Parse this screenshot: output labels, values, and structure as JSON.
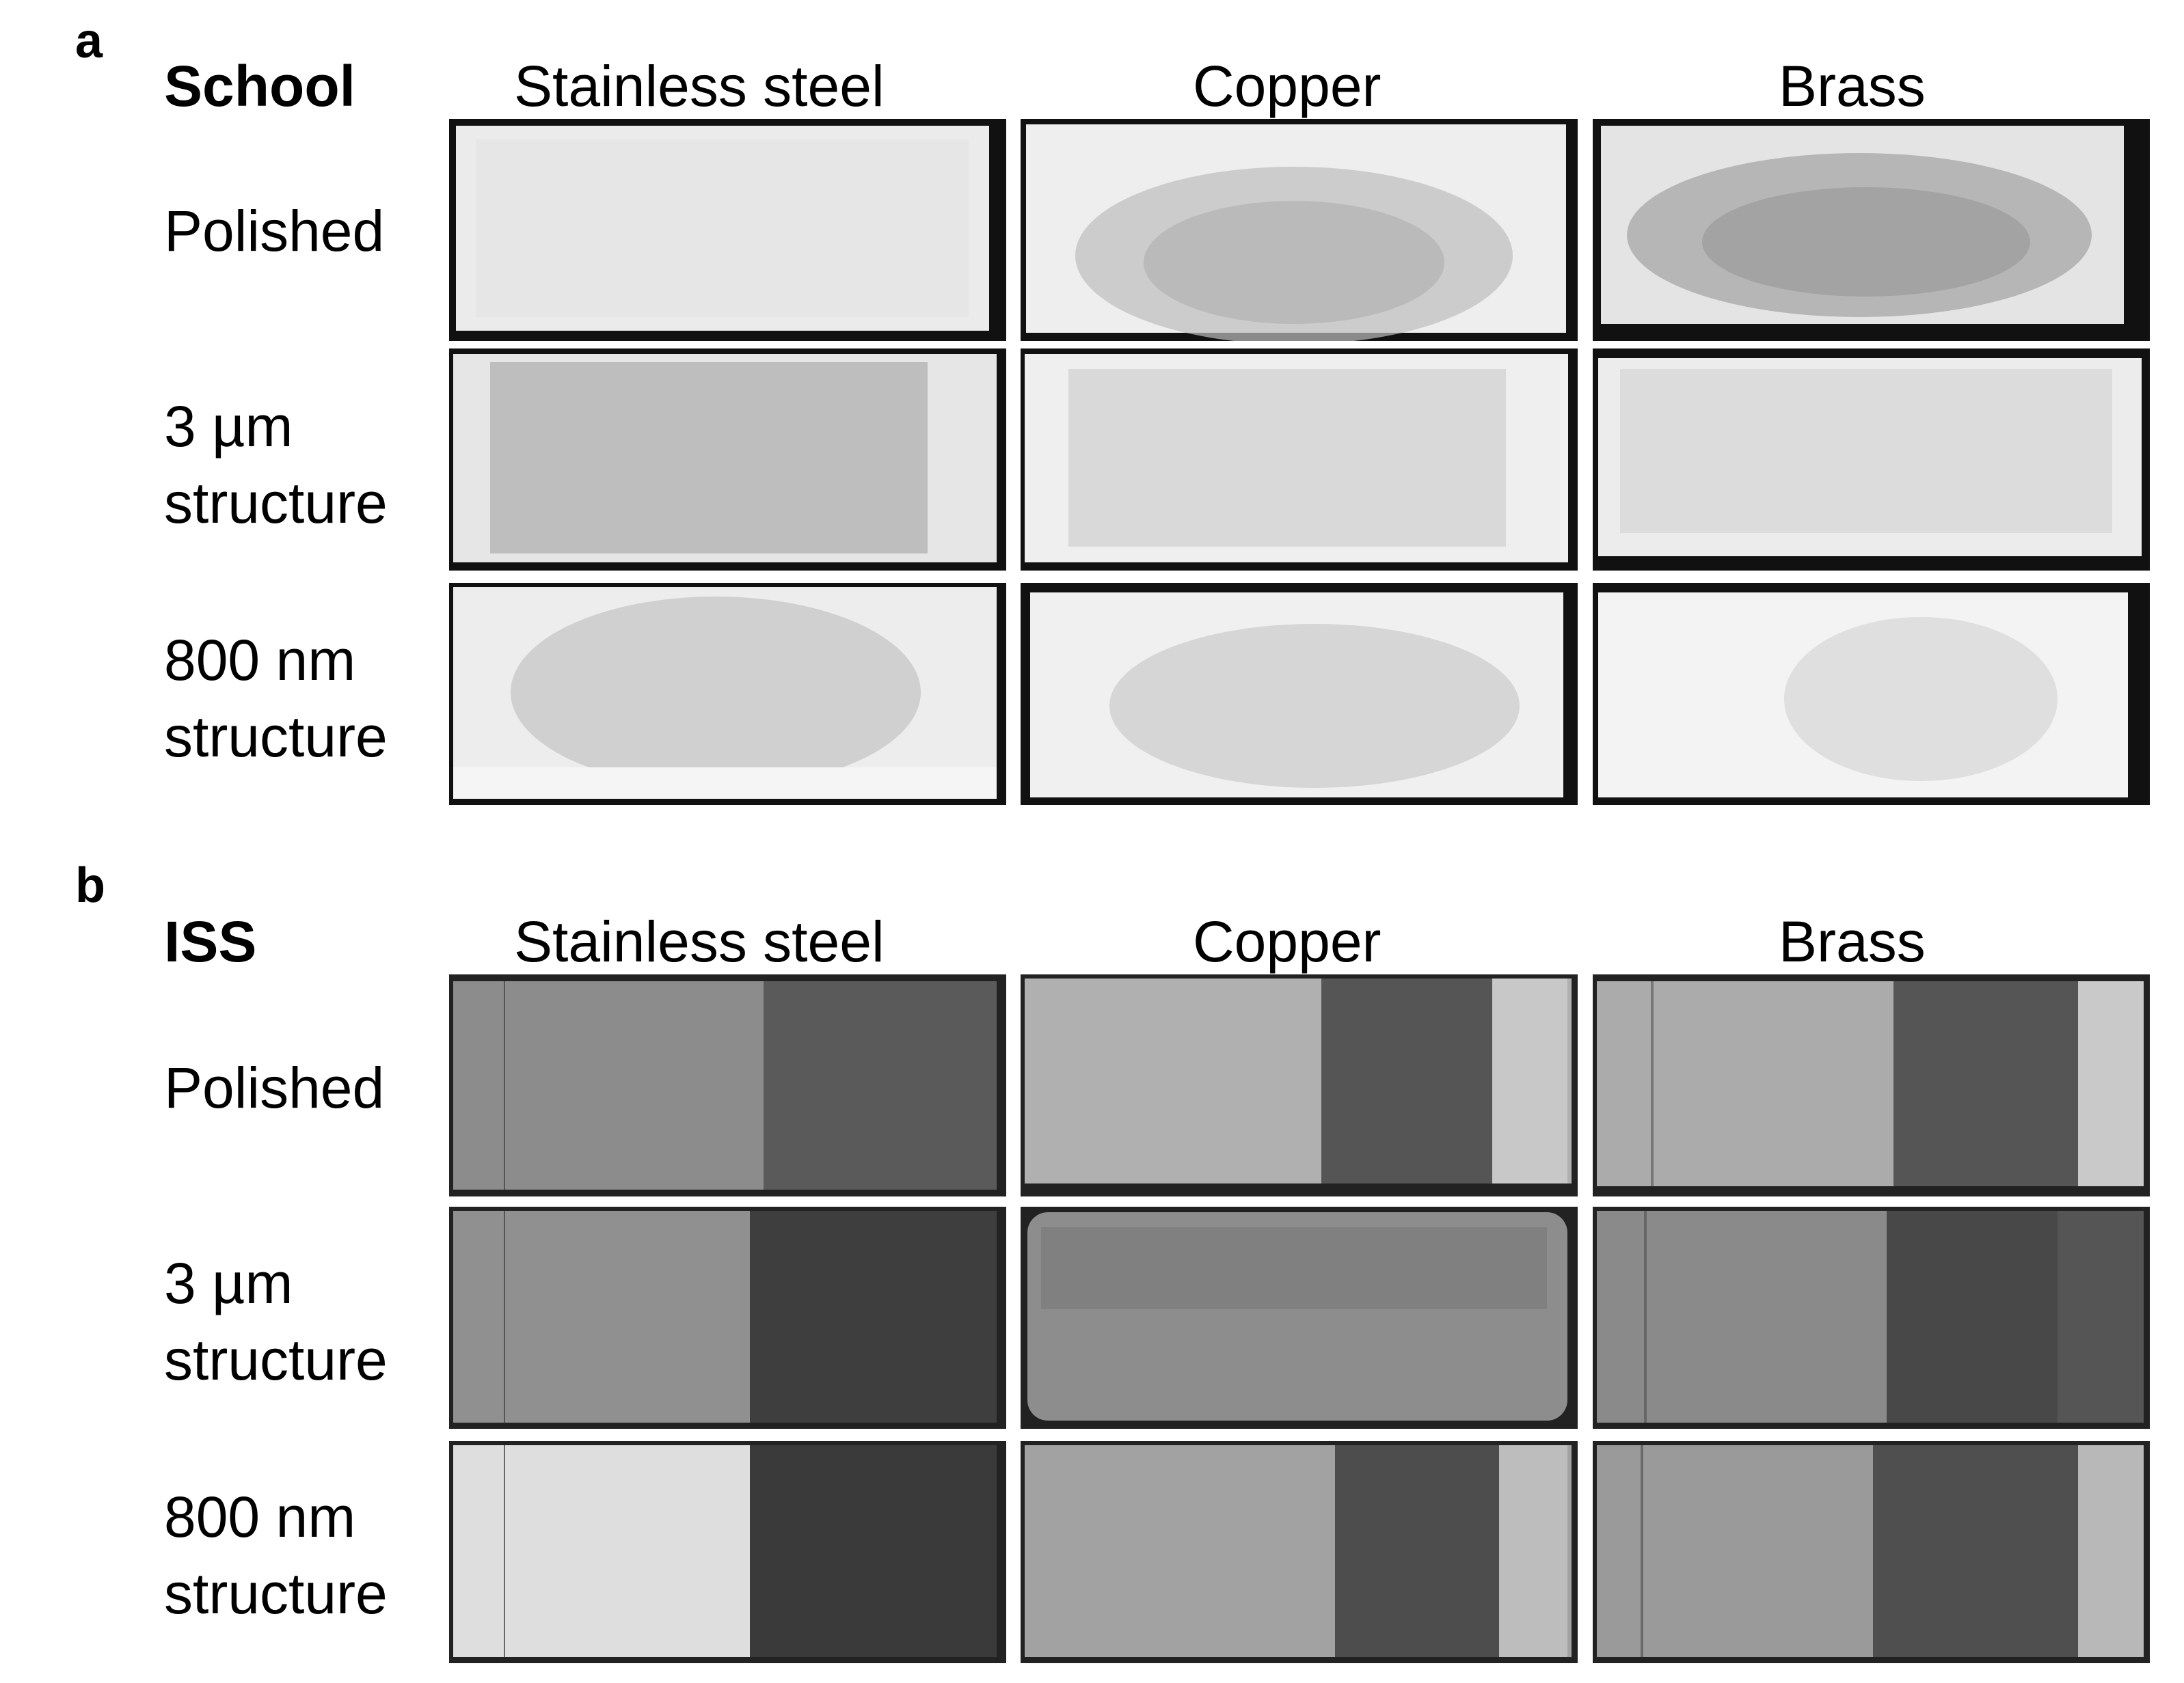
{
  "panels": [
    {
      "letter": "a",
      "condition": "School",
      "columns": [
        "Stainless steel",
        "Copper",
        "Brass"
      ],
      "rows": [
        {
          "line1": "Polished",
          "line2": ""
        },
        {
          "line1": "3 µm",
          "line2": "structure"
        },
        {
          "line1": "800 nm",
          "line2": "structure"
        }
      ]
    },
    {
      "letter": "b",
      "condition": "ISS",
      "columns": [
        "Stainless steel",
        "Copper",
        "Brass"
      ],
      "rows": [
        {
          "line1": "Polished",
          "line2": ""
        },
        {
          "line1": "3 µm",
          "line2": "structure"
        },
        {
          "line1": "800 nm",
          "line2": "structure"
        }
      ]
    }
  ],
  "images": {
    "school_style": "bright micrographs with dark borders and faint fingerprint patterns",
    "iss_style": "grey micrographs split into a lighter and a darker region",
    "colors": {
      "school_bg": "#e9e9e9",
      "school_border": "#111111",
      "iss_light": "#9c9c9c",
      "iss_dark": "#4a4a4a"
    }
  }
}
